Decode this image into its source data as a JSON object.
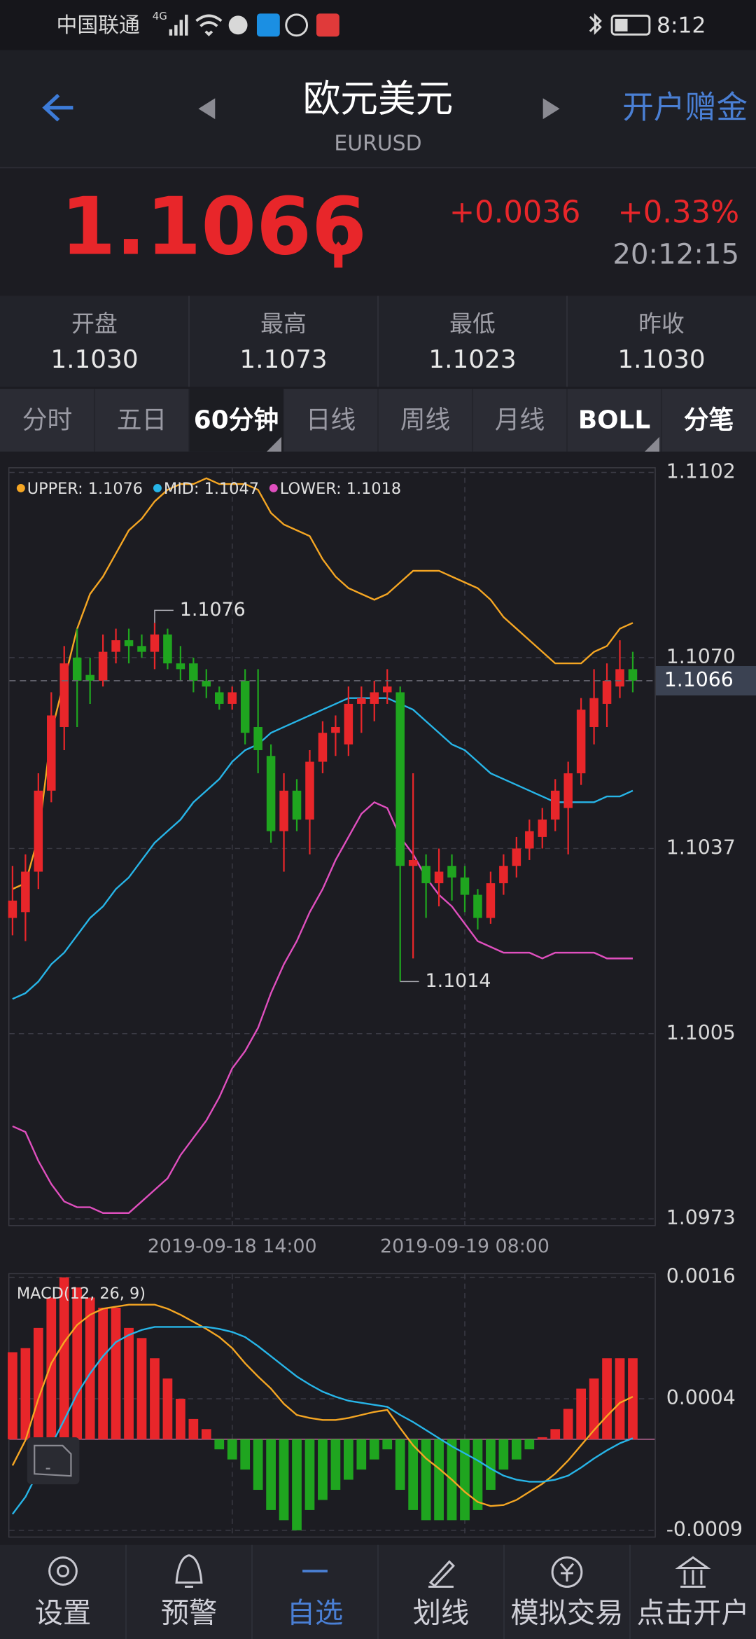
{
  "status_bar": {
    "carrier": "中国联通",
    "network": "4G",
    "time": "8:12"
  },
  "header": {
    "title": "欧元美元",
    "subtitle": "EURUSD",
    "action": "开户赠金"
  },
  "quote": {
    "price": "1.1066",
    "change": "+0.0036",
    "change_pct": "+0.33%",
    "time": "20:12:15"
  },
  "stats": [
    {
      "label": "开盘",
      "value": "1.1030"
    },
    {
      "label": "最高",
      "value": "1.1073"
    },
    {
      "label": "最低",
      "value": "1.1023"
    },
    {
      "label": "昨收",
      "value": "1.1030"
    }
  ],
  "tabs": {
    "items": [
      "分时",
      "五日",
      "60分钟",
      "日线",
      "周线",
      "月线",
      "BOLL",
      "分笔"
    ],
    "active": 2
  },
  "chart_data": [
    {
      "type": "candlestick",
      "categories": [
        null,
        null,
        null,
        null,
        null,
        null,
        null,
        null,
        null,
        null,
        null,
        null,
        null,
        null,
        null,
        null,
        null,
        "2019-09-18 14:00",
        null,
        null,
        null,
        null,
        null,
        null,
        null,
        null,
        null,
        null,
        null,
        null,
        null,
        null,
        null,
        null,
        null,
        "2019-09-19 08:00",
        null,
        null,
        null,
        null,
        null,
        null,
        null,
        null,
        null,
        null,
        null,
        null,
        null
      ],
      "open": [
        1.1025,
        1.1026,
        1.1033,
        1.1047,
        1.1058,
        1.107,
        1.1067,
        1.1066,
        1.1071,
        1.1073,
        1.1072,
        1.1071,
        1.1074,
        1.1069,
        1.1069,
        1.1066,
        1.1064,
        1.1062,
        1.1066,
        1.1058,
        1.1053,
        1.104,
        1.1047,
        1.1042,
        1.1052,
        1.1057,
        1.1055,
        1.1062,
        1.1062,
        1.1064,
        1.1064,
        1.1034,
        1.1034,
        1.1031,
        1.1034,
        1.1032,
        1.1029,
        1.1025,
        1.1031,
        1.1034,
        1.1037,
        1.1039,
        1.1042,
        1.1044,
        1.105,
        1.1058,
        1.1062,
        1.1065,
        1.1068
      ],
      "high": [
        1.1034,
        1.1036,
        1.105,
        1.1064,
        1.1072,
        1.1075,
        1.107,
        1.1074,
        1.1075,
        1.1075,
        1.1074,
        1.1076,
        1.1075,
        1.1072,
        1.107,
        1.1068,
        1.1065,
        1.1065,
        1.1068,
        1.1068,
        1.1055,
        1.105,
        1.1049,
        1.1054,
        1.1059,
        1.106,
        1.1065,
        1.1065,
        1.1066,
        1.1068,
        1.1065,
        1.105,
        1.1036,
        1.1037,
        1.1036,
        1.1034,
        1.103,
        1.1033,
        1.1036,
        1.1039,
        1.1042,
        1.1044,
        1.1049,
        1.1052,
        1.1063,
        1.1068,
        1.1069,
        1.1073,
        1.1071
      ],
      "low": [
        1.1022,
        1.1021,
        1.103,
        1.1045,
        1.1054,
        1.1058,
        1.1062,
        1.1065,
        1.1069,
        1.1069,
        1.107,
        1.1068,
        1.1068,
        1.1066,
        1.1064,
        1.1063,
        1.1061,
        1.1061,
        1.1055,
        1.105,
        1.1038,
        1.1033,
        1.104,
        1.1036,
        1.105,
        1.1053,
        1.1053,
        1.1057,
        1.1059,
        1.1062,
        1.1014,
        1.1018,
        1.1025,
        1.1027,
        1.1028,
        1.1026,
        1.1023,
        1.1024,
        1.1029,
        1.1032,
        1.1035,
        1.1037,
        1.104,
        1.1036,
        1.1048,
        1.1055,
        1.1058,
        1.1063,
        1.1064
      ],
      "close": [
        1.1028,
        1.1033,
        1.1047,
        1.106,
        1.1069,
        1.1066,
        1.1066,
        1.1071,
        1.1073,
        1.1072,
        1.1071,
        1.1074,
        1.1069,
        1.1068,
        1.1066,
        1.1065,
        1.1062,
        1.1064,
        1.1057,
        1.1054,
        1.104,
        1.1047,
        1.1042,
        1.1052,
        1.1057,
        1.1058,
        1.1062,
        1.1063,
        1.1064,
        1.1065,
        1.1034,
        1.1035,
        1.1031,
        1.1033,
        1.1032,
        1.1029,
        1.1025,
        1.1031,
        1.1034,
        1.1037,
        1.104,
        1.1042,
        1.1047,
        1.105,
        1.1061,
        1.1063,
        1.1066,
        1.1068,
        1.1066
      ],
      "up_color": "#e8262a",
      "down_color": "#1fa51f",
      "series": [
        {
          "name": "UPPER: 1.1076",
          "color": "#f5a623",
          "values": [
            1.103,
            1.1031,
            1.1039,
            1.1057,
            1.1066,
            1.1075,
            1.1081,
            1.1084,
            1.1088,
            1.1092,
            1.1094,
            1.1097,
            1.1099,
            1.11,
            1.11,
            1.1101,
            1.11,
            1.11,
            1.11,
            1.1099,
            1.1095,
            1.1093,
            1.1092,
            1.1091,
            1.1087,
            1.1084,
            1.1082,
            1.1081,
            1.108,
            1.1081,
            1.1083,
            1.1085,
            1.1085,
            1.1085,
            1.1084,
            1.1083,
            1.1082,
            1.108,
            1.1077,
            1.1075,
            1.1073,
            1.1071,
            1.1069,
            1.1069,
            1.1069,
            1.1071,
            1.1072,
            1.1075,
            1.1076
          ]
        },
        {
          "name": "MID: 1.1047",
          "color": "#27b5e8",
          "values": [
            1.1011,
            1.1012,
            1.1014,
            1.1017,
            1.1019,
            1.1022,
            1.1025,
            1.1027,
            1.103,
            1.1032,
            1.1035,
            1.1038,
            1.104,
            1.1042,
            1.1045,
            1.1047,
            1.1049,
            1.1052,
            1.1054,
            1.1055,
            1.1057,
            1.1058,
            1.1059,
            1.106,
            1.1061,
            1.1062,
            1.1063,
            1.1063,
            1.1063,
            1.1063,
            1.1062,
            1.1061,
            1.1059,
            1.1057,
            1.1055,
            1.1054,
            1.1052,
            1.105,
            1.1049,
            1.1048,
            1.1047,
            1.1046,
            1.1045,
            1.1045,
            1.1045,
            1.1045,
            1.1046,
            1.1046,
            1.1047
          ]
        },
        {
          "name": "LOWER: 1.1018",
          "color": "#e04fbf",
          "values": [
            1.0989,
            1.0988,
            1.0983,
            1.0979,
            1.0976,
            1.0975,
            1.0975,
            1.0974,
            1.0974,
            1.0974,
            1.0976,
            1.0978,
            1.098,
            1.0984,
            1.0987,
            1.099,
            1.0994,
            1.0999,
            1.1002,
            1.1006,
            1.1012,
            1.1017,
            1.1021,
            1.1026,
            1.103,
            1.1035,
            1.1039,
            1.1043,
            1.1045,
            1.1044,
            1.1039,
            1.1036,
            1.1032,
            1.1029,
            1.1027,
            1.1024,
            1.1021,
            1.102,
            1.1019,
            1.1019,
            1.1019,
            1.1018,
            1.1019,
            1.1019,
            1.1019,
            1.1019,
            1.1018,
            1.1018,
            1.1018
          ]
        }
      ],
      "ylim": [
        1.0973,
        1.1102
      ],
      "yticks": [
        1.1102,
        {
          "value": 1.107,
          "label": "1.1070"
        },
        1.1037,
        1.1005,
        1.0973
      ],
      "grid": true,
      "current": 1.1066,
      "max_label": 1.1076,
      "min_label": 1.1014
    },
    {
      "type": "macd",
      "title": "MACD(12, 26, 9)",
      "values": [
        0.00086,
        0.0009,
        0.0011,
        0.0014,
        0.0016,
        0.0015,
        0.0014,
        0.0013,
        0.0013,
        0.0011,
        0.001,
        0.0008,
        0.0006,
        0.0004,
        0.0002,
        0.0001,
        -0.0001,
        -0.0002,
        -0.0003,
        -0.0005,
        -0.0007,
        -0.0008,
        -0.0009,
        -0.0007,
        -0.0006,
        -0.0005,
        -0.0004,
        -0.0003,
        -0.0002,
        -0.0001,
        -0.0005,
        -0.0007,
        -0.0008,
        -0.0008,
        -0.0008,
        -0.0008,
        -0.0007,
        -0.0005,
        -0.0003,
        -0.0002,
        -0.0001,
        2e-05,
        0.0001,
        0.0003,
        0.0005,
        0.0006,
        0.0008,
        0.0008,
        0.0008
      ],
      "up_color": "#e8262a",
      "down_color": "#1fa51f",
      "series": [
        {
          "color": "#f5a623",
          "values": [
            -0.00026,
            -1e-05,
            0.0004,
            0.00075,
            0.00096,
            0.00113,
            0.00123,
            0.00129,
            0.00131,
            0.00133,
            0.00133,
            0.00133,
            0.00129,
            0.00123,
            0.00116,
            0.00109,
            0.00101,
            0.0009,
            0.00075,
            0.00062,
            0.0005,
            0.00035,
            0.00024,
            0.00021,
            0.00019,
            0.00019,
            0.00021,
            0.00024,
            0.00027,
            0.00029,
            0.00011,
            -6e-05,
            -0.00019,
            -0.00029,
            -0.0004,
            -0.00052,
            -0.00062,
            -0.00066,
            -0.00065,
            -0.0006,
            -0.00052,
            -0.00044,
            -0.00034,
            -0.00021,
            -6e-05,
            9e-05,
            0.00023,
            0.00036,
            0.00042
          ]
        },
        {
          "color": "#27b5e8",
          "values": [
            -0.00074,
            -0.00057,
            -0.00032,
            -6e-05,
            0.00019,
            0.00045,
            0.00065,
            0.00082,
            0.00096,
            0.00103,
            0.00108,
            0.00111,
            0.00111,
            0.00111,
            0.00111,
            0.00111,
            0.00109,
            0.00106,
            0.00101,
            0.00092,
            0.00082,
            0.00072,
            0.00062,
            0.00054,
            0.00047,
            0.00042,
            0.00038,
            0.00036,
            0.00034,
            0.00032,
            0.00024,
            0.00017,
            9e-05,
            1e-05,
            -7e-05,
            -0.00014,
            -0.00021,
            -0.00029,
            -0.00036,
            -0.0004,
            -0.00042,
            -0.00042,
            -0.0004,
            -0.00036,
            -0.00028,
            -0.00019,
            -0.00011,
            -4e-05,
            1e-05
          ]
        }
      ],
      "ylim": [
        -0.0009,
        0.0016
      ],
      "yticks": [
        0.0016,
        0.0004,
        -0.0009
      ],
      "grid": true
    }
  ],
  "nav": {
    "items": [
      "设置",
      "预警",
      "自选",
      "划线",
      "模拟交易",
      "点击开户"
    ],
    "active": 2
  }
}
